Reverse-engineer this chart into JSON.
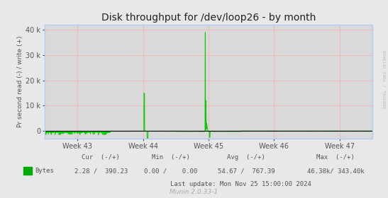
{
  "title": "Disk throughput for /dev/loop26 - by month",
  "ylabel": "Pr second read (-) / write (+)",
  "background_color": "#e8e8e8",
  "plot_background_color": "#d9d9d9",
  "grid_color": "#f0b8b8",
  "line_color": "#00cc00",
  "axis_color": "#aaaaaa",
  "text_color": "#555555",
  "ylim": [
    -3000,
    42000
  ],
  "yticks": [
    0,
    10000,
    20000,
    30000,
    40000
  ],
  "week_labels": [
    "Week 43",
    "Week 44",
    "Week 45",
    "Week 46",
    "Week 47"
  ],
  "legend_color": "#00aa00",
  "footer_text": "Munin 2.0.33-1",
  "legend_label": "Bytes",
  "cur_text": "Cur  (-/+)",
  "cur_val": "2.28 /  390.23",
  "min_text": "Min  (-/+)",
  "min_val": "0.00 /    0.00",
  "avg_text": "Avg  (-/+)",
  "avg_val": "54.67 /  767.39",
  "max_text": "Max  (-/+)",
  "max_val": "46.38k/ 343.40k",
  "last_update": "Last update: Mon Nov 25 15:00:00 2024",
  "right_label": "RRDTOOL / TOBI OETIKER",
  "title_fontsize": 10,
  "label_fontsize": 6.5,
  "tick_fontsize": 7,
  "footer_fontsize": 6.5,
  "ylabel_fontsize": 6.5
}
